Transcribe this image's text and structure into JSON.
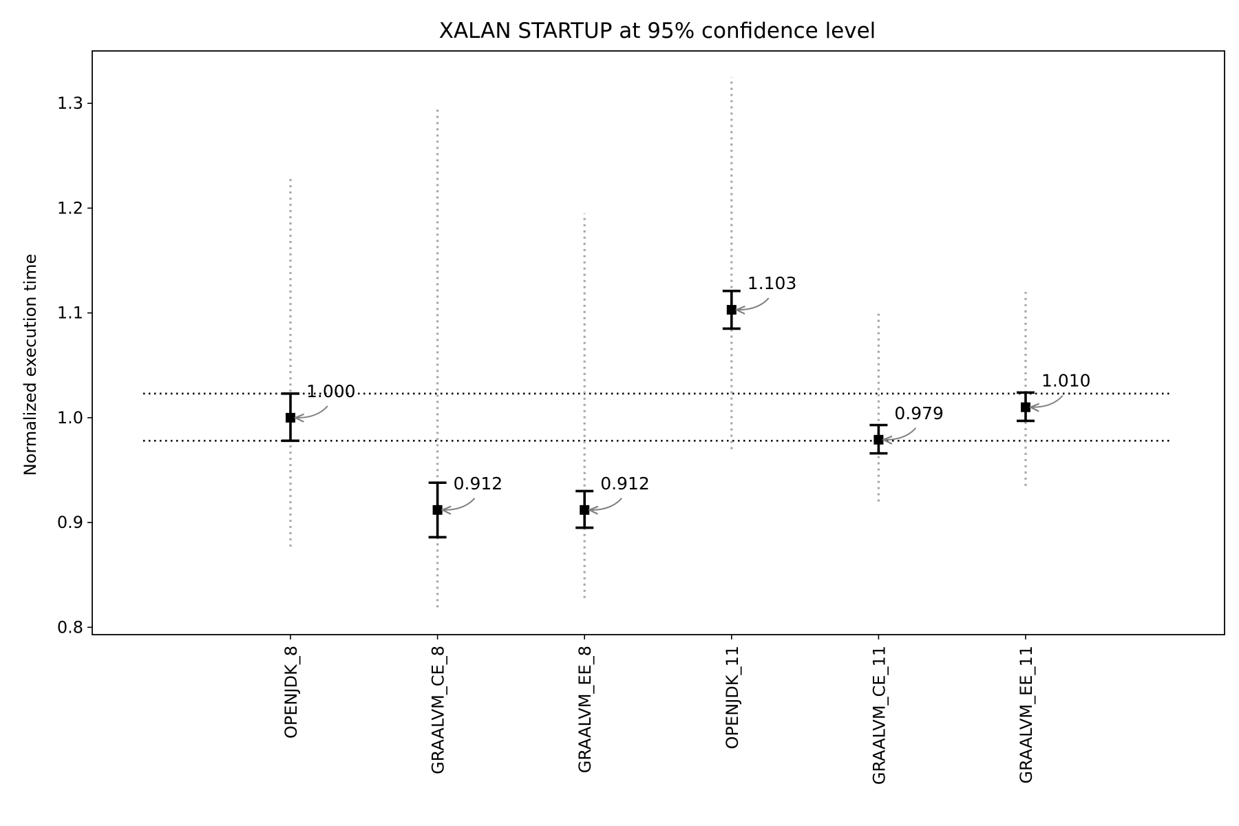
{
  "chart_data": {
    "type": "scatter",
    "title": "XALAN STARTUP at 95% confidence level",
    "xlabel": "",
    "ylabel": "Normalized execution time",
    "ylim": [
      0.793,
      1.35
    ],
    "yticks": [
      0.8,
      0.9,
      1.0,
      1.1,
      1.2,
      1.3
    ],
    "ytick_labels": [
      "0.8",
      "0.9",
      "1.0",
      "1.1",
      "1.2",
      "1.3"
    ],
    "grid": false,
    "legend": "none",
    "categories": [
      "OPENJDK_8",
      "GRAALVM_CE_8",
      "GRAALVM_EE_8",
      "OPENJDK_11",
      "GRAALVM_CE_11",
      "GRAALVM_EE_11"
    ],
    "values": [
      1.0,
      0.912,
      0.912,
      1.103,
      0.979,
      1.01
    ],
    "value_labels": [
      "1.000",
      "0.912",
      "0.912",
      "1.103",
      "0.979",
      "1.010"
    ],
    "ci_low": [
      0.978,
      0.886,
      0.895,
      1.085,
      0.966,
      0.997
    ],
    "ci_high": [
      1.023,
      0.938,
      0.93,
      1.121,
      0.993,
      1.024
    ],
    "range_low": [
      0.877,
      0.819,
      0.828,
      0.97,
      0.92,
      0.935
    ],
    "range_high": [
      1.23,
      1.295,
      1.195,
      1.325,
      1.1,
      1.12
    ],
    "reference_band": [
      0.978,
      1.023
    ],
    "colors": {
      "marker": "#000000",
      "errorbar": "#000000",
      "range": "#a6a6a6",
      "reference": "#000000",
      "arrow": "#808080"
    }
  }
}
